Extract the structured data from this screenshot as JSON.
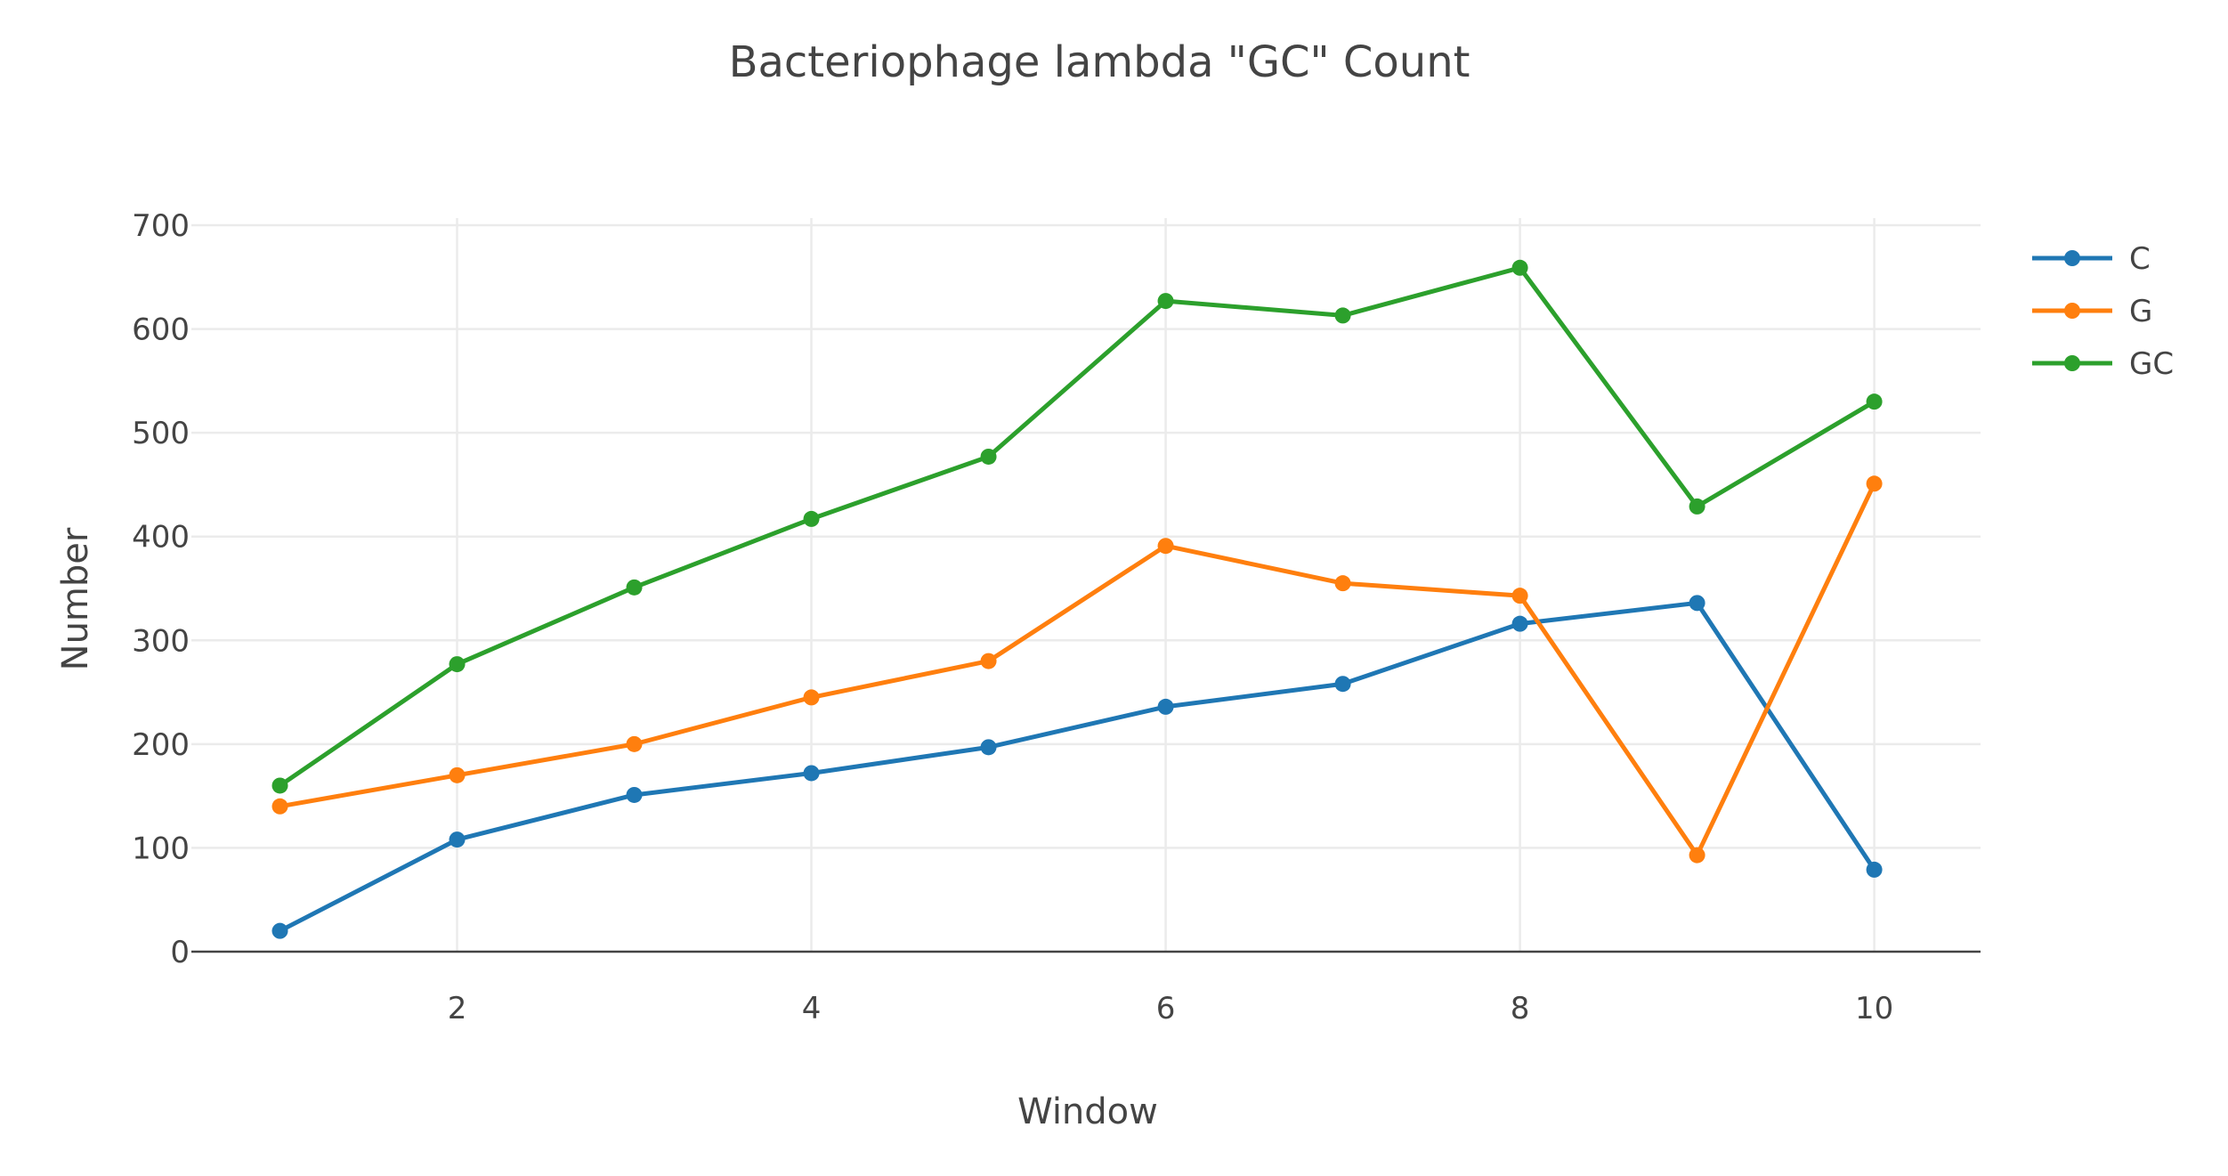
{
  "chart_data": {
    "type": "line",
    "title": "Bacteriophage lambda \"GC\" Count",
    "xlabel": "Window",
    "ylabel": "Number",
    "x": [
      1,
      2,
      3,
      4,
      5,
      6,
      7,
      8,
      9,
      10
    ],
    "xlim": [
      0.5,
      10.6
    ],
    "ylim": [
      0,
      700
    ],
    "x_ticks": [
      2,
      4,
      6,
      8,
      10
    ],
    "y_ticks": [
      0,
      100,
      200,
      300,
      400,
      500,
      600,
      700
    ],
    "grid": true,
    "legend_position": "top-right",
    "series": [
      {
        "name": "C",
        "color": "#1f77b4",
        "values": [
          20,
          108,
          151,
          172,
          197,
          236,
          258,
          316,
          336,
          79
        ]
      },
      {
        "name": "G",
        "color": "#ff7f0e",
        "values": [
          140,
          170,
          200,
          245,
          280,
          391,
          355,
          343,
          93,
          451
        ]
      },
      {
        "name": "GC",
        "color": "#2ca02c",
        "values": [
          160,
          277,
          351,
          417,
          477,
          627,
          613,
          659,
          429,
          530
        ]
      }
    ]
  }
}
